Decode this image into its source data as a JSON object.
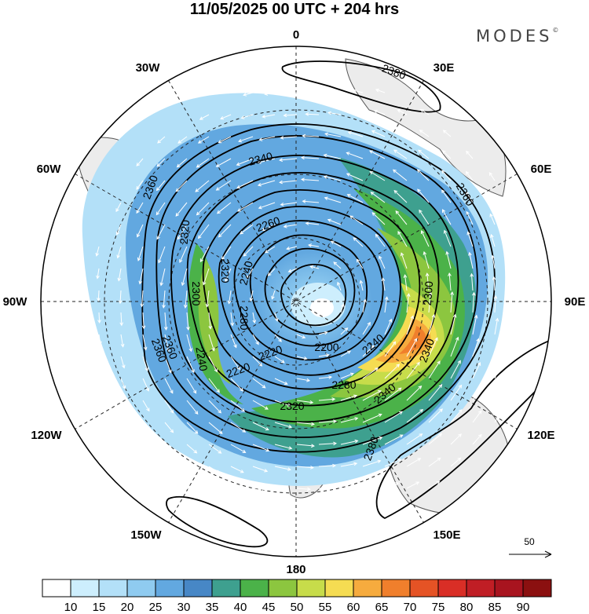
{
  "title": "11/05/2025  00 UTC  + 204 hrs",
  "brand": "MODES",
  "brand_mark": "©",
  "longitude_labels": {
    "n0": "0",
    "n30e": "30E",
    "n60e": "60E",
    "n90e": "90E",
    "n120e": "120E",
    "n150e": "150E",
    "n180": "180",
    "n150w": "150W",
    "n120w": "120W",
    "n90w": "90W",
    "n60w": "60W",
    "n30w": "30W"
  },
  "contour_labels": [
    "2380",
    "2340",
    "2360",
    "2320",
    "2260",
    "2240",
    "2300",
    "2320",
    "2280",
    "2300",
    "2340",
    "2360",
    "2360",
    "2240",
    "2240",
    "2220",
    "2200",
    "2280",
    "2320",
    "2360",
    "2340",
    "2380",
    "2220"
  ],
  "reference_vector": {
    "label": "50"
  },
  "colorbar": {
    "ticks": [
      "10",
      "15",
      "20",
      "25",
      "30",
      "35",
      "40",
      "45",
      "50",
      "55",
      "60",
      "65",
      "70",
      "75",
      "80",
      "85",
      "90"
    ],
    "colors": [
      "#ffffff",
      "#cdeefd",
      "#b3e0f8",
      "#8fcbf0",
      "#62a8e0",
      "#4787c6",
      "#3ea08f",
      "#4bb249",
      "#8cc63f",
      "#c7dc4a",
      "#f5dc52",
      "#f6ab3e",
      "#f07f2c",
      "#e55325",
      "#d92e26",
      "#c01e25",
      "#a8141f",
      "#8b1010"
    ]
  },
  "colors": {
    "land": "#ececec",
    "coast": "#555555",
    "contour": "#000000",
    "vector": "#ffffff"
  }
}
